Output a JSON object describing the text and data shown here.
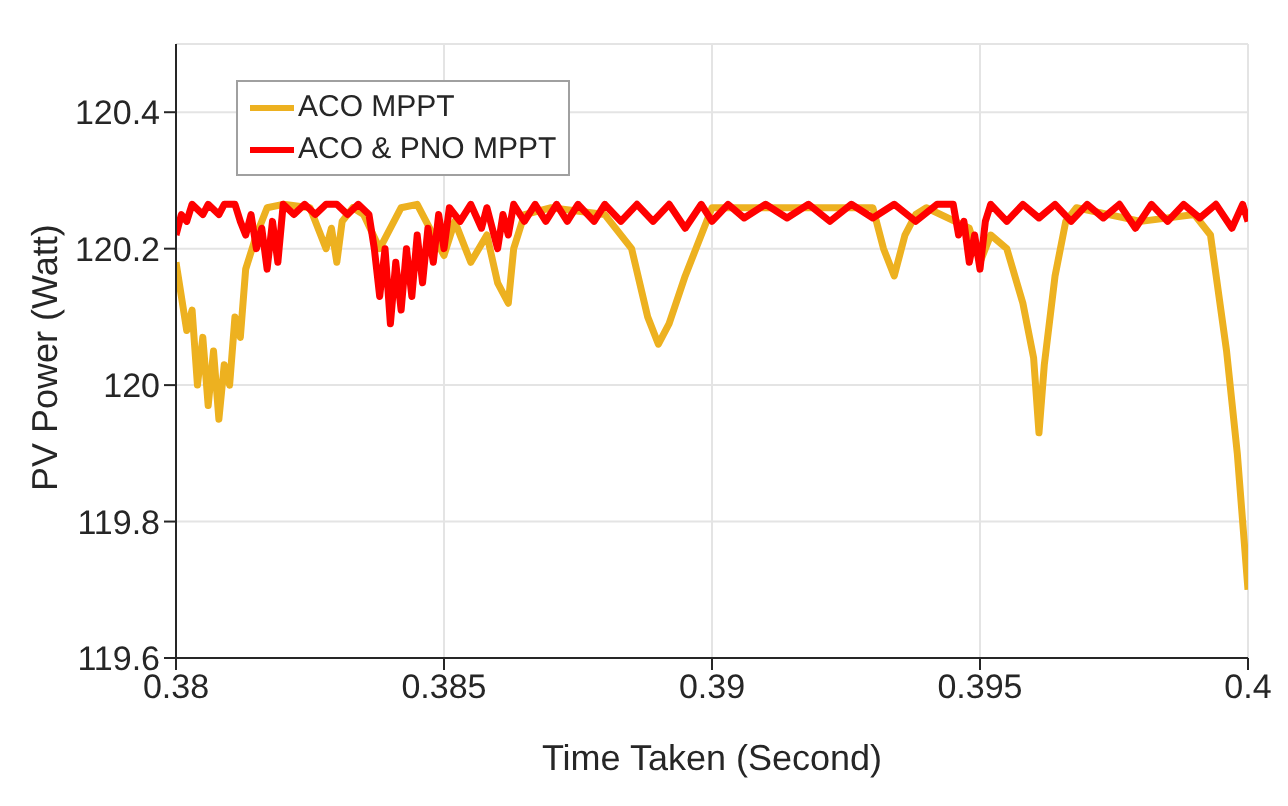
{
  "chart_data": {
    "type": "line",
    "xlabel": "Time Taken (Second)",
    "ylabel": "PV Power (Watt)",
    "xlim": [
      0.38,
      0.4
    ],
    "xticks": [
      0.38,
      0.385,
      0.39,
      0.395,
      0.4
    ],
    "ylim": [
      119.6,
      120.5
    ],
    "yticks": [
      119.6,
      119.8,
      120,
      120.2,
      120.4
    ],
    "grid": true,
    "legend": "top left",
    "marker": "none",
    "line_style": "solid",
    "series": [
      {
        "name": "ACO MPPT",
        "color": "#edb120",
        "x": [
          0.38,
          0.3802,
          0.3803,
          0.3804,
          0.3805,
          0.3806,
          0.3807,
          0.3808,
          0.3809,
          0.381,
          0.3811,
          0.3812,
          0.3813,
          0.3815,
          0.3817,
          0.382,
          0.3825,
          0.3828,
          0.3829,
          0.383,
          0.3831,
          0.3833,
          0.3835,
          0.3838,
          0.3842,
          0.3845,
          0.3848,
          0.385,
          0.3852,
          0.3855,
          0.3858,
          0.386,
          0.3862,
          0.3863,
          0.3865,
          0.387,
          0.388,
          0.3885,
          0.3888,
          0.389,
          0.3892,
          0.3895,
          0.3898,
          0.39,
          0.392,
          0.393,
          0.3932,
          0.3934,
          0.3936,
          0.3938,
          0.394,
          0.3948,
          0.395,
          0.3952,
          0.3955,
          0.3958,
          0.396,
          0.3961,
          0.3962,
          0.3964,
          0.3966,
          0.3968,
          0.398,
          0.399,
          0.3993,
          0.3996,
          0.3998,
          0.4
        ],
        "values": [
          120.18,
          120.08,
          120.11,
          120.0,
          120.07,
          119.97,
          120.05,
          119.95,
          120.03,
          120.0,
          120.1,
          120.07,
          120.17,
          120.22,
          120.26,
          120.265,
          120.26,
          120.2,
          120.23,
          120.18,
          120.24,
          120.26,
          120.25,
          120.2,
          120.26,
          120.265,
          120.22,
          120.19,
          120.24,
          120.18,
          120.22,
          120.15,
          120.12,
          120.2,
          120.25,
          120.26,
          120.25,
          120.2,
          120.1,
          120.06,
          120.09,
          120.16,
          120.22,
          120.26,
          120.26,
          120.26,
          120.2,
          120.16,
          120.22,
          120.25,
          120.26,
          120.23,
          120.18,
          120.22,
          120.2,
          120.12,
          120.04,
          119.93,
          120.03,
          120.16,
          120.24,
          120.26,
          120.24,
          120.25,
          120.22,
          120.05,
          119.9,
          119.7
        ]
      },
      {
        "name": "ACO & PNO MPPT",
        "color": "#ff0000",
        "x": [
          0.38,
          0.3801,
          0.3802,
          0.3803,
          0.3805,
          0.3806,
          0.3808,
          0.3809,
          0.3811,
          0.3812,
          0.3813,
          0.3814,
          0.3815,
          0.3816,
          0.3817,
          0.3818,
          0.3819,
          0.382,
          0.3822,
          0.3824,
          0.3826,
          0.3828,
          0.383,
          0.3832,
          0.3834,
          0.3836,
          0.3837,
          0.3838,
          0.3839,
          0.384,
          0.3841,
          0.3842,
          0.3843,
          0.3844,
          0.3845,
          0.3846,
          0.3847,
          0.3848,
          0.3849,
          0.385,
          0.3851,
          0.3853,
          0.3855,
          0.3857,
          0.3858,
          0.386,
          0.3861,
          0.3862,
          0.3863,
          0.3865,
          0.3867,
          0.3869,
          0.3871,
          0.3873,
          0.3875,
          0.3878,
          0.388,
          0.3883,
          0.3886,
          0.3889,
          0.3892,
          0.3895,
          0.3898,
          0.39,
          0.3903,
          0.3906,
          0.391,
          0.3914,
          0.3918,
          0.3922,
          0.3926,
          0.393,
          0.3934,
          0.3938,
          0.3942,
          0.3945,
          0.3946,
          0.3947,
          0.3948,
          0.3949,
          0.395,
          0.3951,
          0.3952,
          0.3955,
          0.3958,
          0.3961,
          0.3964,
          0.3967,
          0.397,
          0.3973,
          0.3976,
          0.3979,
          0.3982,
          0.3985,
          0.3988,
          0.3991,
          0.3994,
          0.3997,
          0.3999,
          0.4
        ],
        "values": [
          120.22,
          120.25,
          120.24,
          120.265,
          120.25,
          120.265,
          120.25,
          120.265,
          120.265,
          120.24,
          120.22,
          120.25,
          120.2,
          120.23,
          120.17,
          120.24,
          120.18,
          120.265,
          120.25,
          120.265,
          120.25,
          120.265,
          120.265,
          120.25,
          120.265,
          120.25,
          120.2,
          120.13,
          120.2,
          120.09,
          120.18,
          120.11,
          120.2,
          120.13,
          120.22,
          120.15,
          120.23,
          120.18,
          120.25,
          120.2,
          120.26,
          120.24,
          120.265,
          120.23,
          120.26,
          120.2,
          120.25,
          120.22,
          120.265,
          120.24,
          120.265,
          120.24,
          120.265,
          120.24,
          120.265,
          120.24,
          120.265,
          120.24,
          120.265,
          120.24,
          120.265,
          120.23,
          120.265,
          120.24,
          120.265,
          120.245,
          120.265,
          120.245,
          120.265,
          120.24,
          120.265,
          120.245,
          120.265,
          120.24,
          120.265,
          120.265,
          120.22,
          120.24,
          120.18,
          120.22,
          120.17,
          120.24,
          120.265,
          120.24,
          120.265,
          120.245,
          120.265,
          120.24,
          120.265,
          120.245,
          120.265,
          120.23,
          120.265,
          120.24,
          120.265,
          120.245,
          120.265,
          120.23,
          120.265,
          120.24
        ]
      }
    ]
  }
}
